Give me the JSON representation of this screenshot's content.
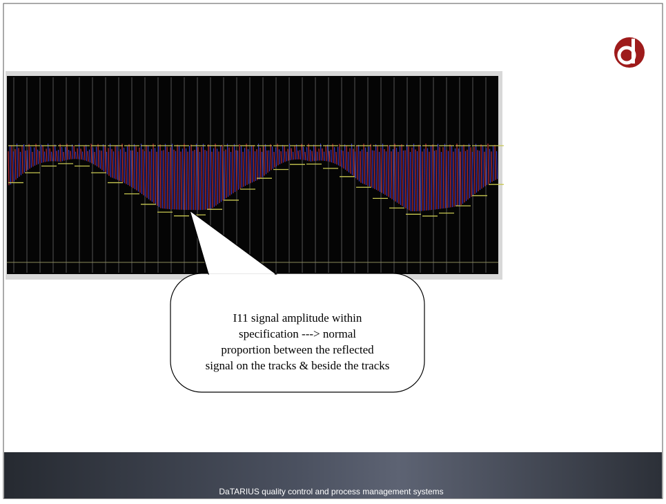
{
  "callout": {
    "lines": [
      "I11 signal amplitude within",
      "specification ---> normal",
      "proportion between the reflected",
      "signal on the tracks & beside the tracks"
    ]
  },
  "footer": {
    "text": "DaTARIUS quality control and process management systems"
  }
}
